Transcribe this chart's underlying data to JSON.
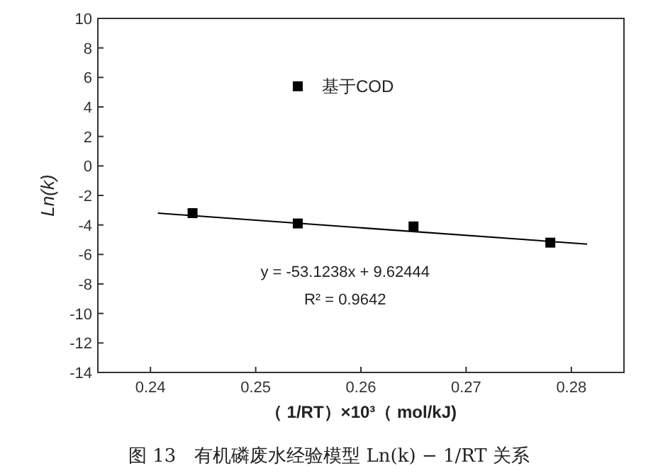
{
  "chart_data": {
    "type": "scatter",
    "xlabel": "（ 1/RT）×10³（ mol/kJ)",
    "ylabel": "Ln(k)",
    "xlim": [
      0.235,
      0.285
    ],
    "xticks": [
      0.24,
      0.25,
      0.26,
      0.27,
      0.28
    ],
    "ylim": [
      -14,
      10
    ],
    "yticks": [
      -14,
      -12,
      -10,
      -8,
      -6,
      -4,
      -2,
      0,
      2,
      4,
      6,
      8,
      10
    ],
    "series": [
      {
        "name": "基于COD",
        "color": "#000000",
        "marker": "square",
        "x": [
          0.244,
          0.254,
          0.265,
          0.278
        ],
        "values": [
          -3.2,
          -3.9,
          -4.1,
          -5.2
        ]
      },
      {
        "type": "line",
        "color": "#000000",
        "line_style": "solid",
        "x": [
          0.2407,
          0.2815
        ],
        "values": [
          -3.2,
          -5.3
        ]
      }
    ],
    "legend": "top",
    "grid": false,
    "annotations": [
      "y = -53.1238x + 9.62444",
      "R² = 0.9642",
      "图 13　有机磷废水经验模型 Ln(k) − 1/RT 关系"
    ]
  }
}
